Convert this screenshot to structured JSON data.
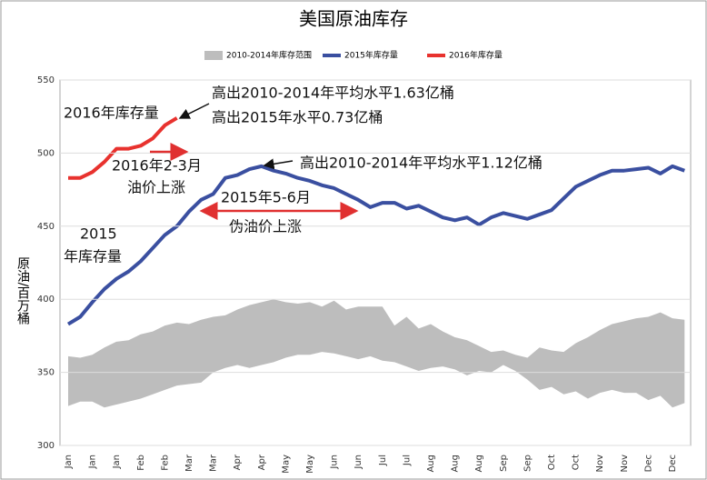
{
  "chart_data": {
    "type": "line",
    "title": "美国原油库存",
    "y_label": "原油/百万桶",
    "categories": [
      "Jan",
      null,
      "Jan",
      null,
      "Jan",
      null,
      "Feb",
      null,
      "Feb",
      null,
      "Mar",
      null,
      "Mar",
      null,
      "Apr",
      null,
      "Apr",
      null,
      "May",
      null,
      "May",
      null,
      "Jun",
      null,
      "Jun",
      null,
      "Jul",
      null,
      "Jul",
      null,
      "Aug",
      null,
      "Aug",
      null,
      "Aug",
      null,
      "Sep",
      null,
      "Sep",
      null,
      "Oct",
      null,
      "Oct",
      null,
      "Nov",
      null,
      "Nov",
      null,
      "Dec",
      null,
      "Dec",
      null
    ],
    "ylim": [
      300,
      550
    ],
    "yticks": [
      300,
      350,
      400,
      450,
      500,
      550
    ],
    "grid": true,
    "series": [
      {
        "name": "2010-2014年库存范围",
        "color": "#bdbdbd",
        "high": [
          361,
          360,
          362,
          367,
          371,
          372,
          376,
          378,
          382,
          384,
          383,
          386,
          388,
          389,
          393,
          396,
          398,
          400,
          398,
          397,
          398,
          395,
          399,
          393,
          395,
          395,
          395,
          382,
          388,
          380,
          383,
          378,
          374,
          372,
          368,
          364,
          365,
          362,
          360,
          367,
          365,
          364,
          370,
          374,
          379,
          383,
          385,
          387,
          388,
          391,
          387,
          386
        ],
        "low": [
          327,
          330,
          330,
          326,
          328,
          330,
          332,
          335,
          338,
          341,
          342,
          343,
          350,
          353,
          355,
          353,
          355,
          357,
          360,
          362,
          362,
          364,
          363,
          361,
          359,
          361,
          358,
          357,
          354,
          351,
          353,
          354,
          352,
          348,
          351,
          350,
          355,
          351,
          345,
          338,
          340,
          335,
          337,
          332,
          336,
          338,
          336,
          336,
          331,
          334,
          326,
          329
        ]
      },
      {
        "name": "2015年库存量",
        "color": "#3a4fa0",
        "values": [
          383,
          388,
          398,
          407,
          414,
          419,
          426,
          435,
          444,
          450,
          460,
          468,
          472,
          483,
          485,
          489,
          491,
          488,
          486,
          483,
          481,
          478,
          476,
          472,
          468,
          463,
          466,
          466,
          462,
          464,
          460,
          456,
          454,
          456,
          451,
          456,
          459,
          457,
          455,
          458,
          461,
          469,
          477,
          481,
          485,
          488,
          488,
          489,
          490,
          486,
          491,
          488
        ]
      },
      {
        "name": "2016年库存量",
        "color": "#e8322e",
        "values": [
          483,
          483,
          487,
          494,
          503,
          503,
          505,
          510,
          519,
          524,
          null,
          null,
          null,
          null,
          null,
          null,
          null,
          null,
          null,
          null,
          null,
          null,
          null,
          null,
          null,
          null,
          null,
          null,
          null,
          null,
          null,
          null,
          null,
          null,
          null,
          null,
          null,
          null,
          null,
          null,
          null,
          null,
          null,
          null,
          null,
          null,
          null,
          null,
          null,
          null,
          null,
          null
        ]
      }
    ],
    "annotations": [
      "2016年库存量",
      "高出2010-2014年平均水平1.63亿桶",
      "高出2015年水平0.73亿桶",
      "2016年2-3月",
      "油价上涨",
      "高出2010-2014年平均水平1.12亿桶",
      "2015年5-6月",
      "伪油价上涨",
      "2015",
      "年库存量",
      "2010-2014年库存范围"
    ]
  }
}
